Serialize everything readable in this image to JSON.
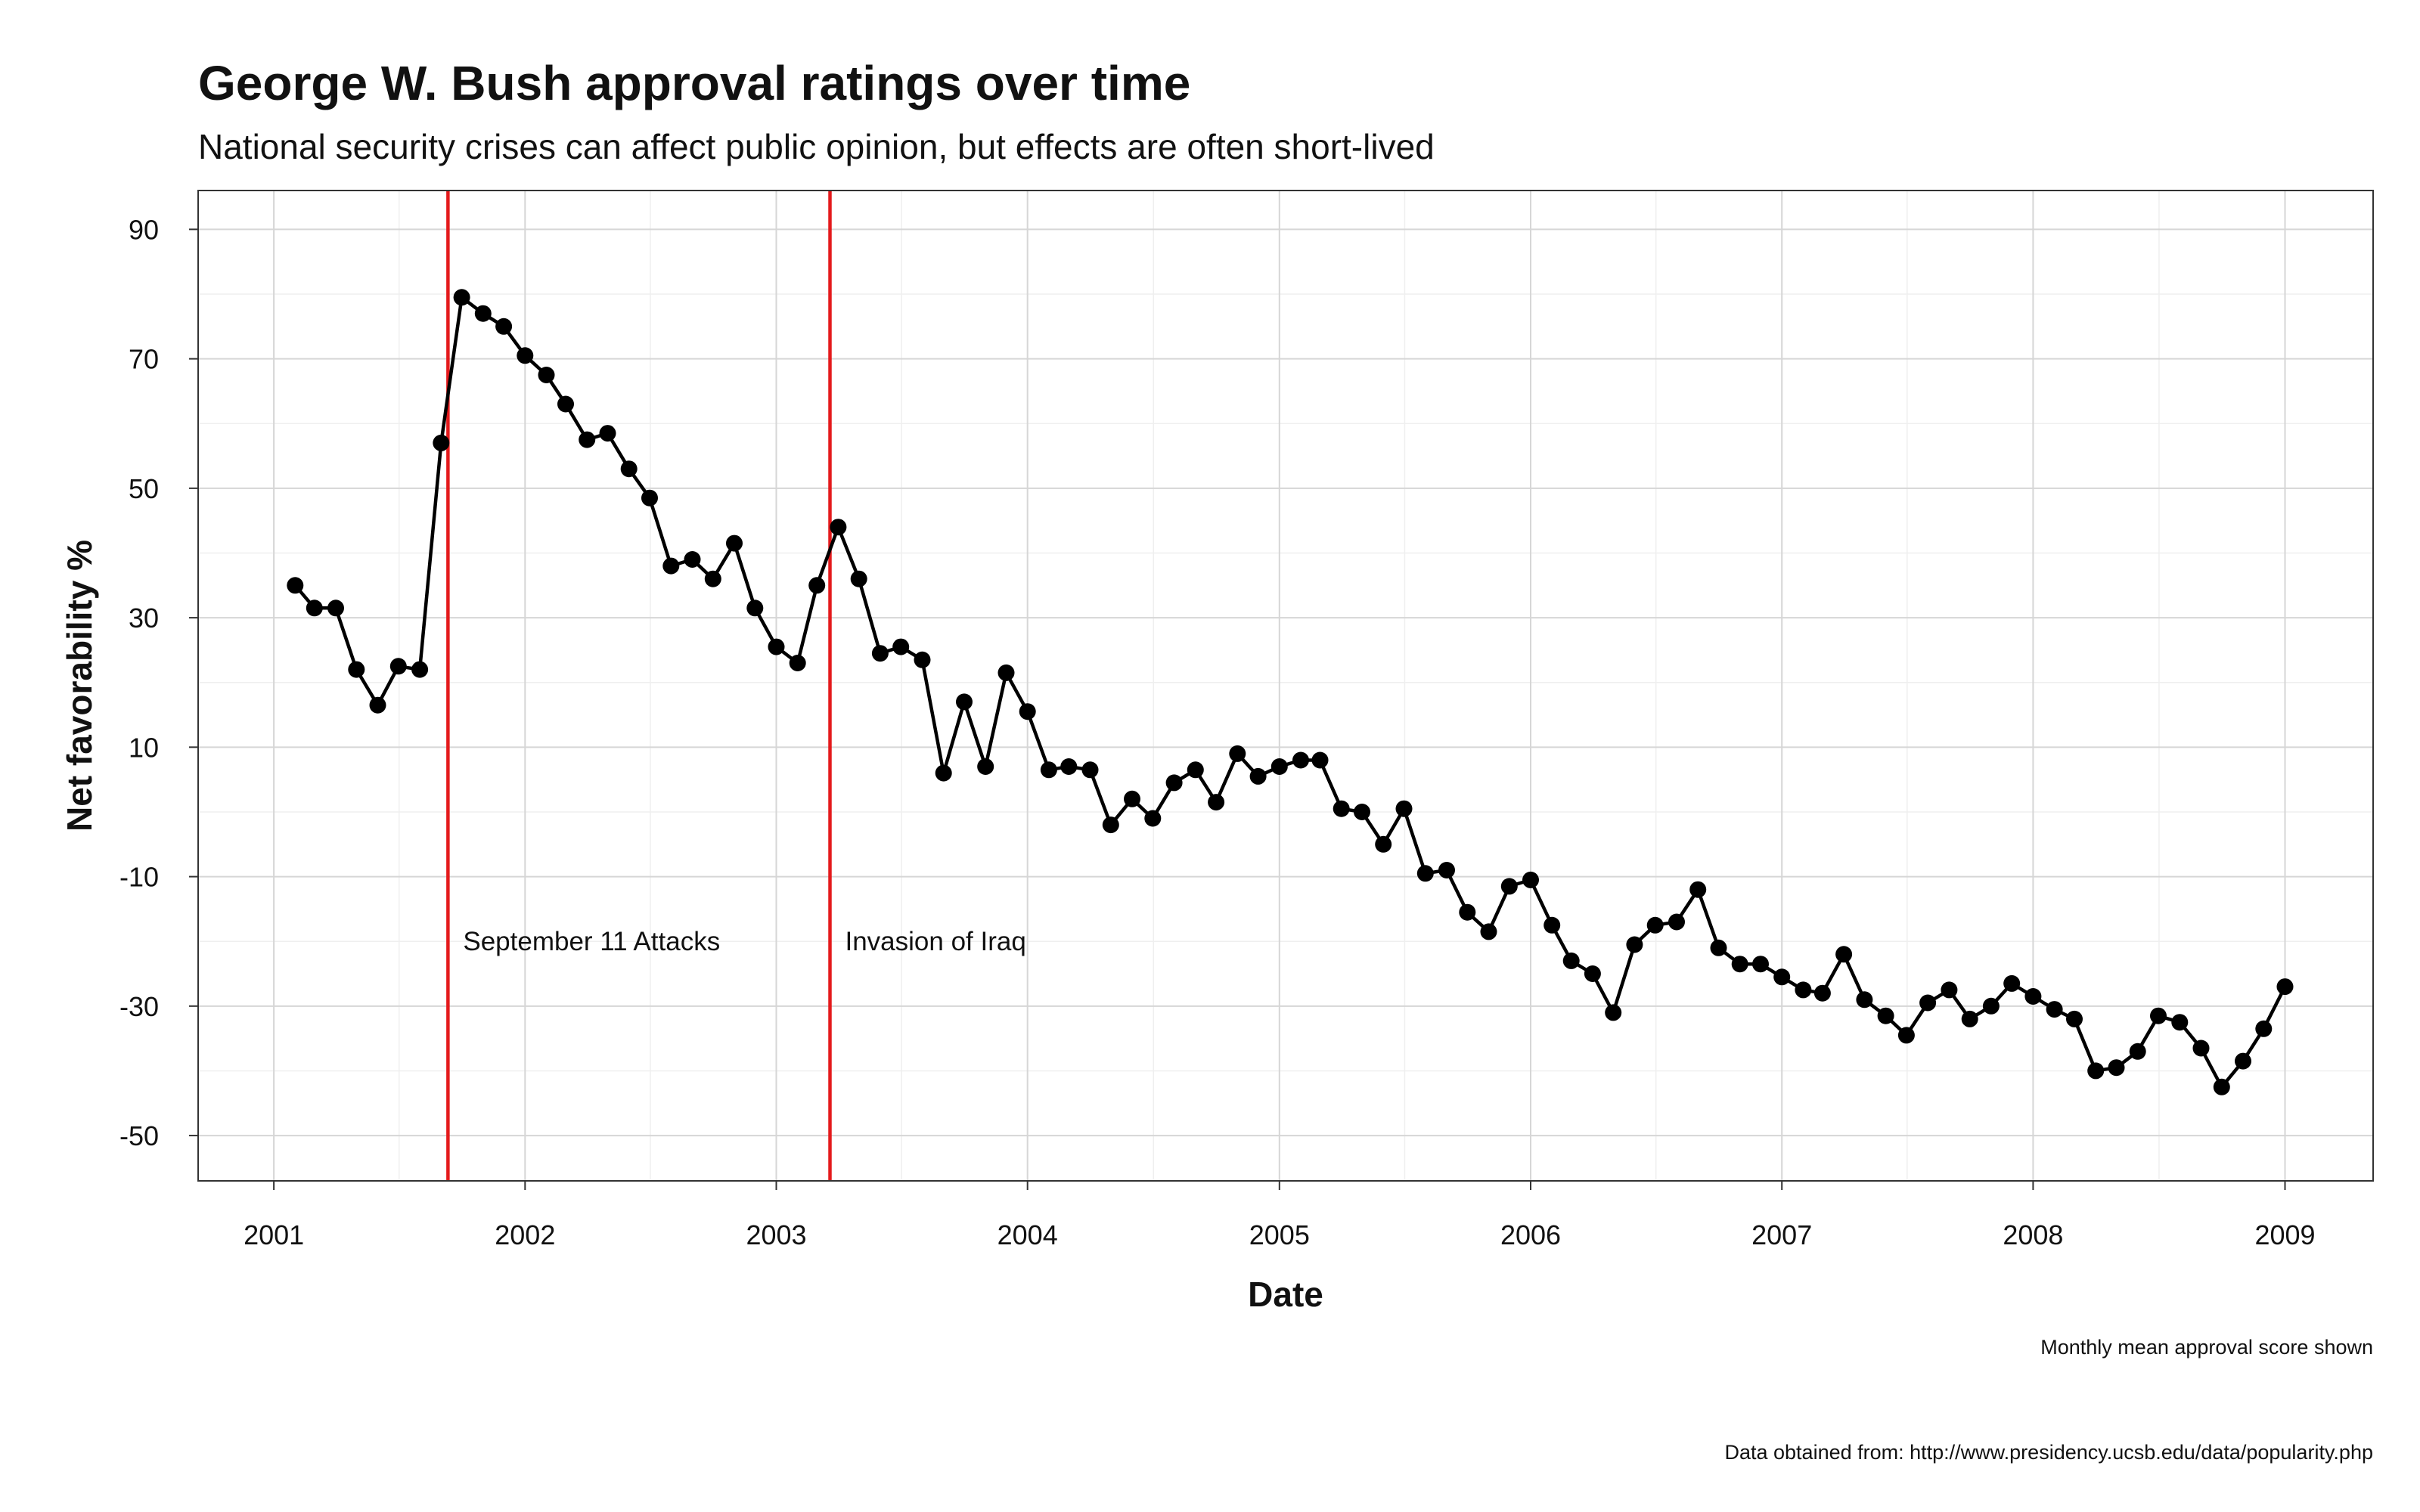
{
  "chart_data": {
    "type": "line",
    "title": "George W. Bush approval ratings over time",
    "subtitle": "National security crises can affect public opinion, but effects are often short-lived",
    "xlabel": "Date",
    "ylabel": "Net favorability %",
    "caption_line1": "Monthly mean approval score shown",
    "caption_line2": "Data obtained from: http://www.presidency.ucsb.edu/data/popularity.php",
    "xlim": [
      "2000-09-13",
      "2009-05-09"
    ],
    "ylim": [
      -57,
      96
    ],
    "x_ticks": [
      "2001",
      "2002",
      "2003",
      "2004",
      "2005",
      "2006",
      "2007",
      "2008",
      "2009"
    ],
    "y_ticks": [
      90,
      70,
      50,
      30,
      10,
      -10,
      -30,
      -50
    ],
    "grid": true,
    "series": [
      {
        "color": "#000000",
        "points": [
          [
            "2001-02-01",
            35
          ],
          [
            "2001-03-01",
            31.5
          ],
          [
            "2001-04-01",
            31.5
          ],
          [
            "2001-05-01",
            22
          ],
          [
            "2001-06-01",
            16.5
          ],
          [
            "2001-07-01",
            22.5
          ],
          [
            "2001-08-01",
            22
          ],
          [
            "2001-09-01",
            57
          ],
          [
            "2001-10-01",
            79.5
          ],
          [
            "2001-11-01",
            77
          ],
          [
            "2001-12-01",
            75
          ],
          [
            "2002-01-01",
            70.5
          ],
          [
            "2002-02-01",
            67.5
          ],
          [
            "2002-03-01",
            63
          ],
          [
            "2002-04-01",
            57.5
          ],
          [
            "2002-05-01",
            58.5
          ],
          [
            "2002-06-01",
            53
          ],
          [
            "2002-07-01",
            48.5
          ],
          [
            "2002-08-01",
            38
          ],
          [
            "2002-09-01",
            39
          ],
          [
            "2002-10-01",
            36
          ],
          [
            "2002-11-01",
            41.5
          ],
          [
            "2002-12-01",
            31.5
          ],
          [
            "2003-01-01",
            25.5
          ],
          [
            "2003-02-01",
            23
          ],
          [
            "2003-03-01",
            35
          ],
          [
            "2003-04-01",
            44
          ],
          [
            "2003-05-01",
            36
          ],
          [
            "2003-06-01",
            24.5
          ],
          [
            "2003-07-01",
            25.5
          ],
          [
            "2003-08-01",
            23.5
          ],
          [
            "2003-09-01",
            6
          ],
          [
            "2003-10-01",
            17
          ],
          [
            "2003-11-01",
            7
          ],
          [
            "2003-12-01",
            21.5
          ],
          [
            "2004-01-01",
            15.5
          ],
          [
            "2004-02-01",
            6.5
          ],
          [
            "2004-03-01",
            7
          ],
          [
            "2004-04-01",
            6.5
          ],
          [
            "2004-05-01",
            -2
          ],
          [
            "2004-06-01",
            2
          ],
          [
            "2004-07-01",
            -1
          ],
          [
            "2004-08-01",
            4.5
          ],
          [
            "2004-09-01",
            6.5
          ],
          [
            "2004-10-01",
            1.5
          ],
          [
            "2004-11-01",
            9
          ],
          [
            "2004-12-01",
            5.5
          ],
          [
            "2005-01-01",
            7
          ],
          [
            "2005-02-01",
            8
          ],
          [
            "2005-03-01",
            8
          ],
          [
            "2005-04-01",
            0.5
          ],
          [
            "2005-05-01",
            0
          ],
          [
            "2005-06-01",
            -5
          ],
          [
            "2005-07-01",
            0.5
          ],
          [
            "2005-08-01",
            -9.5
          ],
          [
            "2005-09-01",
            -9
          ],
          [
            "2005-10-01",
            -15.5
          ],
          [
            "2005-11-01",
            -18.5
          ],
          [
            "2005-12-01",
            -11.5
          ],
          [
            "2006-01-01",
            -10.5
          ],
          [
            "2006-02-01",
            -17.5
          ],
          [
            "2006-03-01",
            -23
          ],
          [
            "2006-04-01",
            -25
          ],
          [
            "2006-05-01",
            -31
          ],
          [
            "2006-06-01",
            -20.5
          ],
          [
            "2006-07-01",
            -17.5
          ],
          [
            "2006-08-01",
            -17
          ],
          [
            "2006-09-01",
            -12
          ],
          [
            "2006-10-01",
            -21
          ],
          [
            "2006-11-01",
            -23.5
          ],
          [
            "2006-12-01",
            -23.5
          ],
          [
            "2007-01-01",
            -25.5
          ],
          [
            "2007-02-01",
            -27.5
          ],
          [
            "2007-03-01",
            -28
          ],
          [
            "2007-04-01",
            -22
          ],
          [
            "2007-05-01",
            -29
          ],
          [
            "2007-06-01",
            -31.5
          ],
          [
            "2007-07-01",
            -34.5
          ],
          [
            "2007-08-01",
            -29.5
          ],
          [
            "2007-09-01",
            -27.5
          ],
          [
            "2007-10-01",
            -32
          ],
          [
            "2007-11-01",
            -30
          ],
          [
            "2007-12-01",
            -26.5
          ],
          [
            "2008-01-01",
            -28.5
          ],
          [
            "2008-02-01",
            -30.5
          ],
          [
            "2008-03-01",
            -32
          ],
          [
            "2008-04-01",
            -40
          ],
          [
            "2008-05-01",
            -39.5
          ],
          [
            "2008-06-01",
            -37
          ],
          [
            "2008-07-01",
            -31.5
          ],
          [
            "2008-08-01",
            -32.5
          ],
          [
            "2008-09-01",
            -36.5
          ],
          [
            "2008-10-01",
            -42.5
          ],
          [
            "2008-11-01",
            -38.5
          ],
          [
            "2008-12-01",
            -33.5
          ],
          [
            "2009-01-01",
            -27
          ]
        ]
      }
    ],
    "annotations": [
      {
        "date": "2001-09-11",
        "label": "September 11 Attacks",
        "color": "#e41a1c"
      },
      {
        "date": "2003-03-20",
        "label": "Invasion of Iraq",
        "color": "#e41a1c"
      }
    ]
  }
}
